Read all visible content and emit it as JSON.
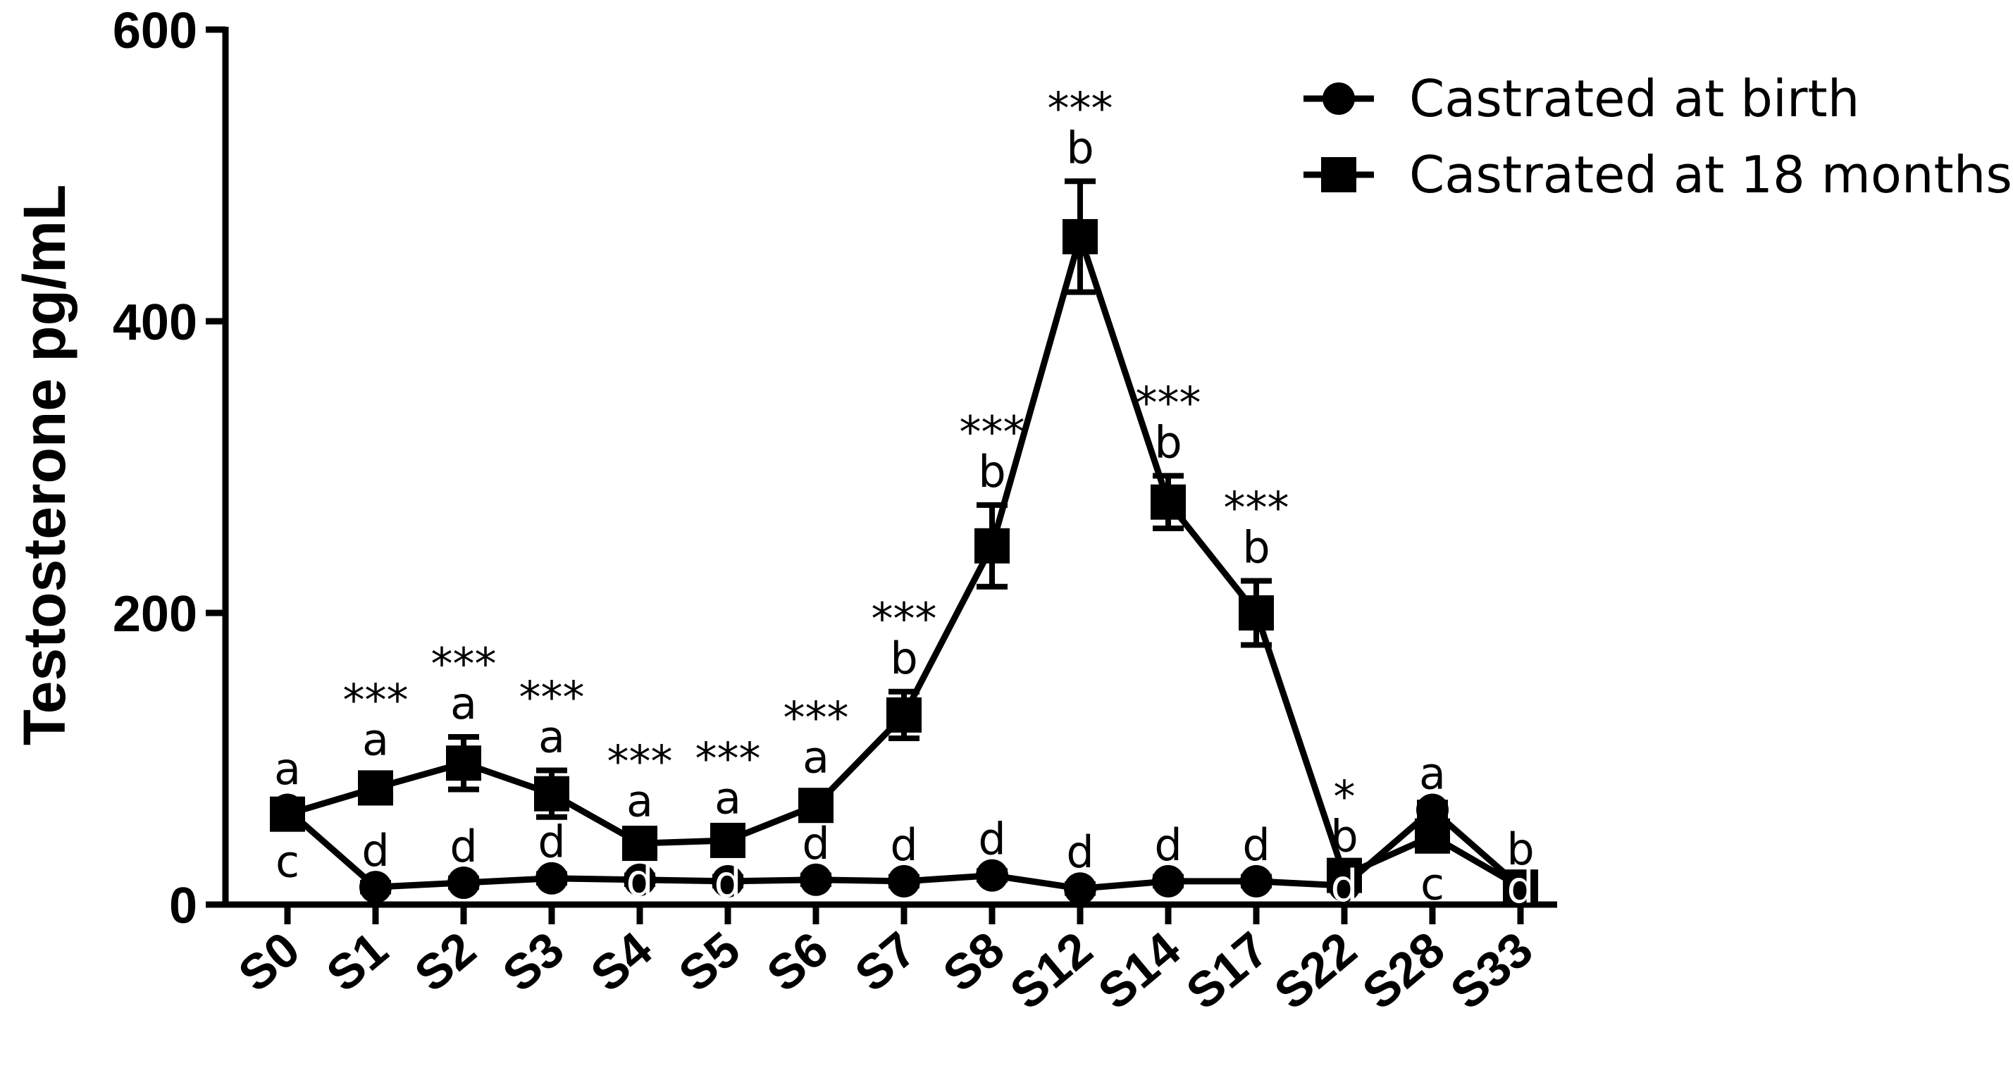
{
  "chart_data": {
    "type": "line",
    "categories": [
      "S0",
      "S1",
      "S2",
      "S3",
      "S4",
      "S5",
      "S6",
      "S7",
      "S8",
      "S12",
      "S14",
      "S17",
      "S22",
      "S28",
      "S33"
    ],
    "ylabel": "Testosterone pg/mL",
    "ylim": [
      0,
      600
    ],
    "yticks": [
      "0",
      "200",
      "400",
      "600"
    ],
    "legend_position": "top-right",
    "series": [
      {
        "name": "Castrated at birth",
        "marker": "circle",
        "color": "#000000",
        "values": [
          65,
          12,
          15,
          18,
          17,
          16,
          17,
          16,
          20,
          11,
          16,
          16,
          13,
          65,
          12
        ],
        "errors": [
          5,
          3,
          3,
          3,
          3,
          3,
          3,
          3,
          3,
          3,
          3,
          3,
          3,
          5,
          3
        ],
        "letters": [
          "c",
          "d",
          "d",
          "d",
          "d",
          "d",
          "d",
          "d",
          "d",
          "d",
          "d",
          "d",
          "d",
          "a",
          "d"
        ],
        "letter_position": [
          "below",
          "above",
          "above",
          "above",
          "on",
          "on",
          "above",
          "above",
          "above",
          "above",
          "above",
          "above",
          "on",
          "above",
          "on"
        ]
      },
      {
        "name": "Castrated at 18 months",
        "marker": "square",
        "color": "#000000",
        "values": [
          62,
          80,
          97,
          76,
          42,
          44,
          68,
          130,
          246,
          458,
          276,
          200,
          20,
          47,
          12
        ],
        "errors": [
          6,
          10,
          18,
          16,
          6,
          6,
          10,
          16,
          28,
          38,
          18,
          22,
          4,
          10,
          3
        ],
        "letters": [
          "a",
          "a",
          "a",
          "a",
          "a",
          "a",
          "a",
          "b",
          "b",
          "b",
          "b",
          "b",
          "b",
          "c",
          "b"
        ],
        "letter_position": [
          "above",
          "above",
          "above",
          "above",
          "above",
          "above",
          "above",
          "above",
          "above",
          "above",
          "above",
          "above",
          "above",
          "below",
          "above"
        ],
        "significance": [
          "",
          "***",
          "***",
          "***",
          "***",
          "***",
          "***",
          "***",
          "***",
          "***",
          "***",
          "***",
          "*",
          "",
          ""
        ]
      }
    ]
  }
}
